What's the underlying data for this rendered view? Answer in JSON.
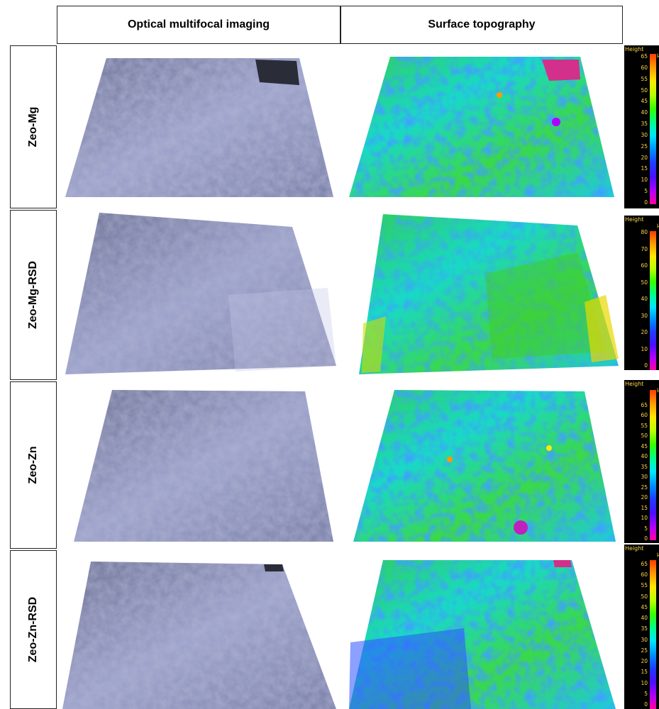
{
  "headers": {
    "optical": "Optical multifocal imaging",
    "topography": "Surface topography"
  },
  "rows": [
    {
      "label": "Zeo-Mg",
      "colorbar": {
        "title": "Height",
        "unit": "µm",
        "ticks": [
          "65",
          "60",
          "55",
          "50",
          "45",
          "40",
          "35",
          "30",
          "25",
          "20",
          "15",
          "10",
          "5",
          "0"
        ]
      }
    },
    {
      "label": "Zeo-Mg-RSD",
      "colorbar": {
        "title": "Height",
        "unit": "µm",
        "ticks": [
          "80",
          "70",
          "60",
          "50",
          "40",
          "30",
          "20",
          "10",
          "0"
        ]
      }
    },
    {
      "label": "Zeo-Zn",
      "colorbar": {
        "title": "Height",
        "unit": "µm",
        "ticks": [
          "65",
          "60",
          "55",
          "50",
          "45",
          "40",
          "35",
          "30",
          "25",
          "20",
          "15",
          "10",
          "5",
          "0"
        ]
      }
    },
    {
      "label": "Zeo-Zn-RSD",
      "colorbar": {
        "title": "Height",
        "unit": "µm",
        "ticks": [
          "65",
          "60",
          "55",
          "50",
          "45",
          "40",
          "35",
          "30",
          "25",
          "20",
          "15",
          "10",
          "5",
          "0"
        ]
      }
    }
  ],
  "colors": {
    "optical_base": "#8a8fb8",
    "topo_green": "#3fd24a",
    "topo_blue": "#2a6cff",
    "topo_cyan": "#16d6e6"
  }
}
